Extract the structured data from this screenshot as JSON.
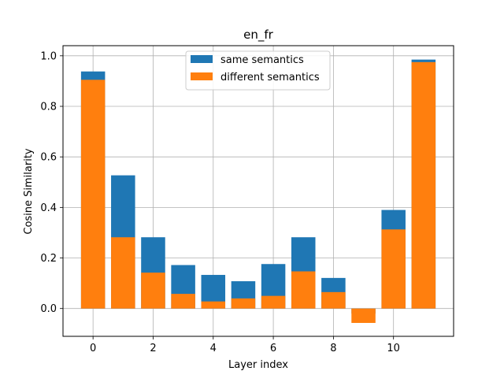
{
  "chart_data": {
    "type": "bar",
    "title": "en_fr",
    "xlabel": "Layer index",
    "ylabel": "Cosine Similarity",
    "x": [
      0,
      1,
      2,
      3,
      4,
      5,
      6,
      7,
      8,
      9,
      10,
      11
    ],
    "xlim": [
      -1,
      12
    ],
    "ylim": [
      -0.11,
      1.04
    ],
    "xticks": [
      0,
      2,
      4,
      6,
      8,
      10
    ],
    "yticks": [
      0.0,
      0.2,
      0.4,
      0.6,
      0.8,
      1.0
    ],
    "xtick_labels": [
      "0",
      "2",
      "4",
      "6",
      "8",
      "10"
    ],
    "ytick_labels": [
      "0.0",
      "0.2",
      "0.4",
      "0.6",
      "0.8",
      "1.0"
    ],
    "grid": true,
    "legend_position": "top-center",
    "series": [
      {
        "name": "same semantics",
        "color": "#1f77b4",
        "values": [
          0.938,
          0.527,
          0.282,
          0.172,
          0.133,
          0.108,
          0.176,
          0.282,
          0.121,
          -0.02,
          0.39,
          0.985
        ]
      },
      {
        "name": "different semantics",
        "color": "#ff7f0e",
        "values": [
          0.905,
          0.282,
          0.142,
          0.058,
          0.028,
          0.04,
          0.05,
          0.147,
          0.065,
          -0.057,
          0.313,
          0.975
        ]
      }
    ]
  }
}
